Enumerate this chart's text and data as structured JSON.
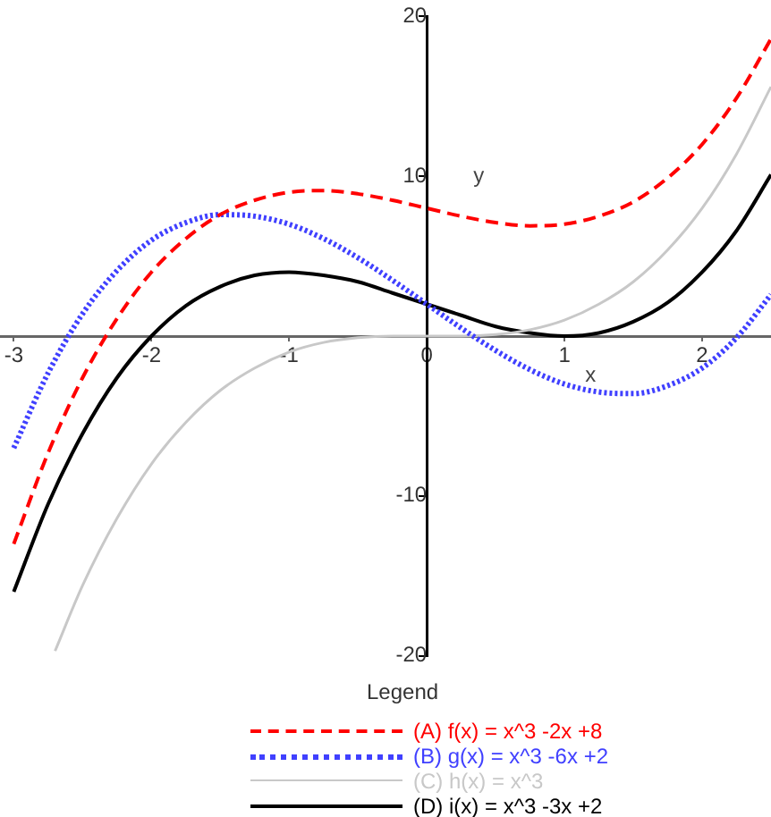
{
  "chart_data": {
    "type": "line",
    "xlabel": "x",
    "ylabel": "y",
    "legend_title": "Legend",
    "legend": "bottom",
    "grid": false,
    "marker": "none",
    "xlim": [
      -3.1,
      2.5
    ],
    "ylim": [
      -20,
      20
    ],
    "xticks": [
      -3,
      -2,
      -1,
      0,
      1,
      2
    ],
    "yticks": [
      -20,
      -10,
      10,
      20
    ],
    "series": [
      {
        "name": "(A) f(x) = x^3 -2x +8",
        "color": "#ff0000",
        "line_style": "dashed",
        "x": [
          -3,
          -2.75,
          -2.5,
          -2.25,
          -2,
          -1.75,
          -1.5,
          -1.25,
          -1,
          -0.75,
          -0.5,
          -0.25,
          0,
          0.25,
          0.5,
          0.75,
          1,
          1.25,
          1.5,
          1.75,
          2,
          2.25,
          2.5
        ],
        "values": [
          -13,
          -7.3,
          -2.6,
          1.1,
          4,
          6.1,
          7.6,
          8.5,
          9,
          9.1,
          8.9,
          8.5,
          8,
          7.5,
          7.1,
          6.9,
          7,
          7.5,
          8.4,
          9.9,
          12,
          14.9,
          18.6
        ]
      },
      {
        "name": "(B) g(x) = x^3 -6x +2",
        "color": "#4040ff",
        "line_style": "dotted",
        "x": [
          -3,
          -2.75,
          -2.5,
          -2.25,
          -2,
          -1.75,
          -1.5,
          -1.25,
          -1,
          -0.75,
          -0.5,
          -0.25,
          0,
          0.25,
          0.5,
          0.75,
          1,
          1.25,
          1.5,
          1.75,
          2,
          2.25,
          2.5
        ],
        "values": [
          -7,
          -2.3,
          1.4,
          4.1,
          6,
          7.1,
          7.6,
          7.5,
          7,
          6.1,
          4.9,
          3.5,
          2,
          0.5,
          -0.9,
          -2.1,
          -3,
          -3.5,
          -3.6,
          -3.1,
          -2,
          -0.1,
          2.6
        ]
      },
      {
        "name": "(C) h(x) = x^3",
        "color": "#c8c8c8",
        "line_style": "solid",
        "x": [
          -2.7,
          -2.5,
          -2.25,
          -2,
          -1.75,
          -1.5,
          -1.25,
          -1,
          -0.75,
          -0.5,
          -0.25,
          0,
          0.25,
          0.5,
          0.75,
          1,
          1.25,
          1.5,
          1.75,
          2,
          2.25,
          2.5
        ],
        "values": [
          -19.7,
          -15.6,
          -11.4,
          -8,
          -5.4,
          -3.4,
          -2,
          -1,
          -0.4,
          -0.1,
          0,
          0,
          0,
          0.1,
          0.4,
          1,
          2,
          3.4,
          5.4,
          8,
          11.4,
          15.6
        ]
      },
      {
        "name": "(D) i(x) = x^3 -3x +2",
        "color": "#000000",
        "line_style": "solid",
        "x": [
          -3,
          -2.75,
          -2.5,
          -2.25,
          -2,
          -1.75,
          -1.5,
          -1.25,
          -1,
          -0.75,
          -0.5,
          -0.25,
          0,
          0.25,
          0.5,
          0.75,
          1,
          1.25,
          1.5,
          1.75,
          2,
          2.25,
          2.5
        ],
        "values": [
          -16,
          -10.5,
          -6.1,
          -2.6,
          0,
          1.9,
          3.1,
          3.8,
          4,
          3.8,
          3.4,
          2.7,
          2,
          1.3,
          0.6,
          0.2,
          0,
          0.2,
          0.9,
          2.1,
          4,
          6.6,
          10.1
        ]
      }
    ]
  }
}
